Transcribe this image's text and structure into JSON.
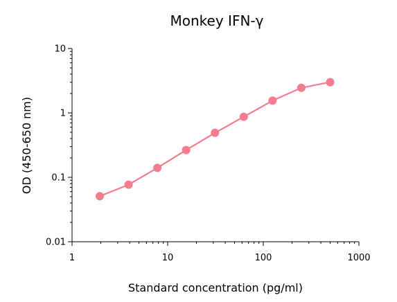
{
  "chart_data": {
    "type": "line",
    "title": "Monkey IFN-γ",
    "xlabel": "Standard concentration (pg/ml)",
    "ylabel": "OD (450-650 nm)",
    "x_scale": "log",
    "y_scale": "log",
    "xlim": [
      1,
      1000
    ],
    "ylim": [
      0.01,
      10
    ],
    "x_ticks": [
      {
        "value": 1,
        "label": "1"
      },
      {
        "value": 10,
        "label": "10"
      },
      {
        "value": 100,
        "label": "100"
      },
      {
        "value": 1000,
        "label": "1000"
      }
    ],
    "y_ticks": [
      {
        "value": 0.01,
        "label": "0.01"
      },
      {
        "value": 0.1,
        "label": "0.1"
      },
      {
        "value": 1,
        "label": "1"
      },
      {
        "value": 10,
        "label": "10"
      }
    ],
    "grid": false,
    "legend": "none",
    "series": [
      {
        "color": "#f47c8f",
        "x": [
          1.95,
          3.9,
          7.8,
          15.6,
          31.25,
          62.5,
          125,
          250,
          500
        ],
        "y": [
          0.051,
          0.077,
          0.14,
          0.265,
          0.49,
          0.87,
          1.55,
          2.45,
          3.0
        ]
      }
    ]
  }
}
